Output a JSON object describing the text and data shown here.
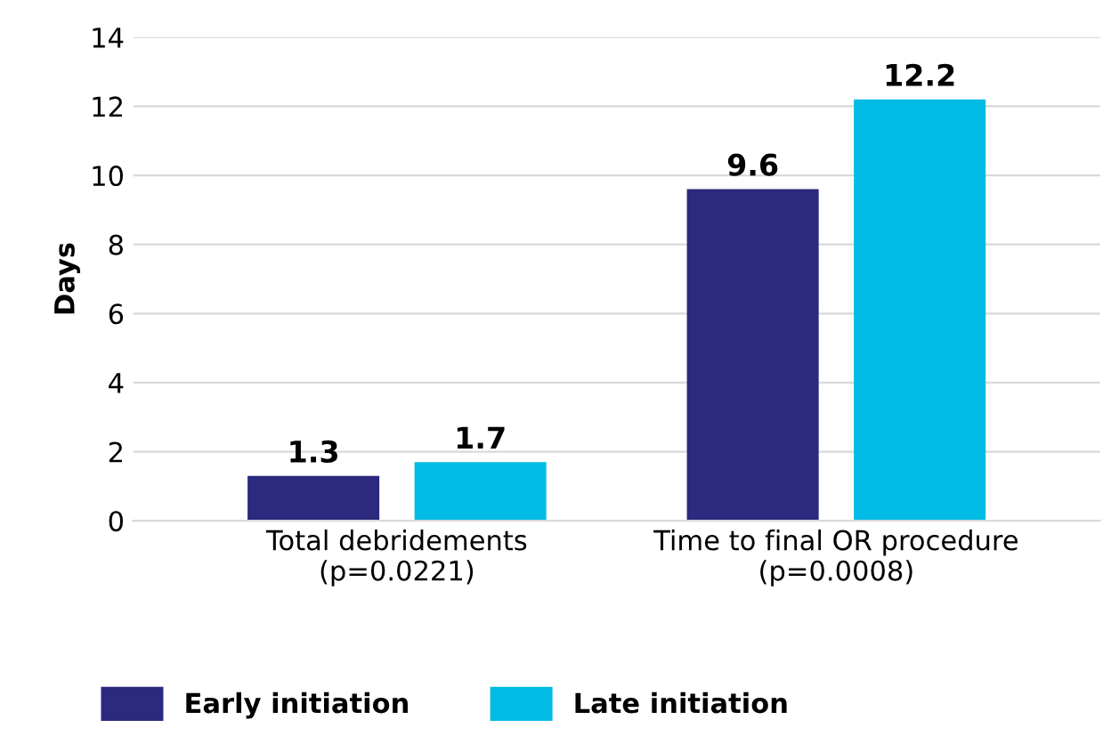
{
  "chart_data": {
    "type": "bar",
    "ylabel": "Days",
    "categories": [
      "Total debridements\n(p=0.0221)",
      "Time to final OR procedure\n(p=0.0008)"
    ],
    "series": [
      {
        "name": "Early initiation",
        "color": "#2b2a7e",
        "values": [
          1.3,
          9.6
        ]
      },
      {
        "name": "Late initiation",
        "color": "#00bce4",
        "values": [
          1.7,
          12.2
        ]
      }
    ],
    "ylim": [
      0,
      14
    ],
    "yticks": [
      0,
      2,
      4,
      6,
      8,
      10,
      12,
      14
    ],
    "grid": "y",
    "legend": "bottom",
    "data_labels": true
  }
}
